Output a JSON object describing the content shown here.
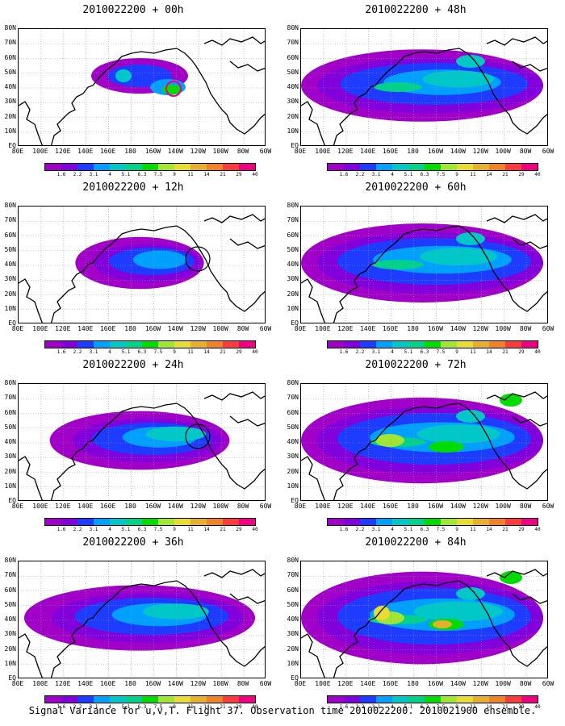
{
  "panels": [
    {
      "title": "2010022200 + 00h",
      "lead": 0
    },
    {
      "title": "2010022200 + 48h",
      "lead": 48
    },
    {
      "title": "2010022200 + 12h",
      "lead": 12
    },
    {
      "title": "2010022200 + 60h",
      "lead": 60
    },
    {
      "title": "2010022200 + 24h",
      "lead": 24
    },
    {
      "title": "2010022200 + 72h",
      "lead": 72
    },
    {
      "title": "2010022200 + 36h",
      "lead": 36
    },
    {
      "title": "2010022200 + 84h",
      "lead": 84
    }
  ],
  "lat_labels": [
    "80N",
    "70N",
    "60N",
    "50N",
    "40N",
    "30N",
    "20N",
    "10N",
    "EQ"
  ],
  "lon_labels": [
    "80E",
    "100E",
    "120E",
    "140E",
    "160E",
    "180",
    "160W",
    "140W",
    "120W",
    "100W",
    "80W",
    "60W"
  ],
  "colorbar": {
    "labels": [
      "1.6",
      "2.2",
      "3.1",
      "4",
      "5.1",
      "6.3",
      "7.5",
      "9",
      "11",
      "14",
      "21",
      "29",
      "40"
    ],
    "colors": [
      "#a000c8",
      "#8200dc",
      "#1e3cff",
      "#00a0ff",
      "#00c8c8",
      "#00d28c",
      "#00dc00",
      "#a0e632",
      "#e6dc32",
      "#e6af2d",
      "#f08228",
      "#fa3c3c",
      "#f00082"
    ]
  },
  "footer": "Signal Variance for u,v,T. Flight 37. Observation time 2010022200. 2010021900 ensemble."
}
